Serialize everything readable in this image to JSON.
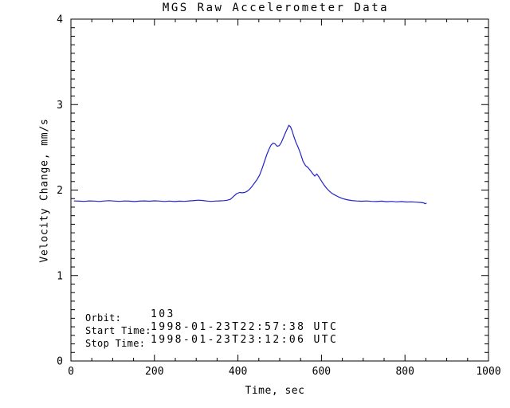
{
  "window": {
    "background_color": "#ffffff"
  },
  "chart_data": {
    "type": "line",
    "title": "MGS Raw Accelerometer Data",
    "xlabel": "Time, sec",
    "ylabel": "Velocity Change, mm/s",
    "xlim": [
      0,
      1000
    ],
    "ylim": [
      0,
      4
    ],
    "x_major_ticks": [
      0,
      200,
      400,
      600,
      800,
      1000
    ],
    "x_tick_labels": [
      "0",
      "200",
      "400",
      "600",
      "800",
      "1000"
    ],
    "x_minor_step": 50,
    "y_major_ticks": [
      0,
      1,
      2,
      3,
      4
    ],
    "y_tick_labels": [
      "0",
      "1",
      "2",
      "3",
      "4"
    ],
    "y_minor_step": 0.1,
    "grid": false,
    "legend": "none",
    "axis_color": "#000000",
    "line_color": "#2222cc",
    "annotations": [
      {
        "label": "Orbit:",
        "value": "103"
      },
      {
        "label": "Start Time:",
        "value": "1998-01-23T22:57:38 UTC"
      },
      {
        "label": "Stop Time:",
        "value": "1998-01-23T23:12:06 UTC"
      }
    ],
    "series": [
      {
        "name": "velocity-change",
        "points": [
          [
            8,
            1.872
          ],
          [
            20,
            1.87
          ],
          [
            32,
            1.868
          ],
          [
            44,
            1.873
          ],
          [
            56,
            1.871
          ],
          [
            68,
            1.867
          ],
          [
            80,
            1.872
          ],
          [
            92,
            1.876
          ],
          [
            104,
            1.871
          ],
          [
            116,
            1.868
          ],
          [
            128,
            1.872
          ],
          [
            140,
            1.87
          ],
          [
            152,
            1.866
          ],
          [
            164,
            1.87
          ],
          [
            176,
            1.873
          ],
          [
            188,
            1.869
          ],
          [
            200,
            1.874
          ],
          [
            212,
            1.871
          ],
          [
            224,
            1.867
          ],
          [
            236,
            1.871
          ],
          [
            248,
            1.866
          ],
          [
            260,
            1.87
          ],
          [
            272,
            1.868
          ],
          [
            284,
            1.873
          ],
          [
            296,
            1.878
          ],
          [
            306,
            1.882
          ],
          [
            316,
            1.878
          ],
          [
            326,
            1.871
          ],
          [
            336,
            1.868
          ],
          [
            346,
            1.871
          ],
          [
            356,
            1.873
          ],
          [
            366,
            1.876
          ],
          [
            374,
            1.881
          ],
          [
            382,
            1.892
          ],
          [
            390,
            1.928
          ],
          [
            397,
            1.958
          ],
          [
            404,
            1.972
          ],
          [
            410,
            1.968
          ],
          [
            416,
            1.972
          ],
          [
            422,
            1.985
          ],
          [
            428,
            2.01
          ],
          [
            434,
            2.045
          ],
          [
            440,
            2.085
          ],
          [
            446,
            2.125
          ],
          [
            452,
            2.175
          ],
          [
            458,
            2.255
          ],
          [
            464,
            2.34
          ],
          [
            469,
            2.415
          ],
          [
            474,
            2.475
          ],
          [
            479,
            2.525
          ],
          [
            484,
            2.548
          ],
          [
            489,
            2.54
          ],
          [
            494,
            2.512
          ],
          [
            499,
            2.52
          ],
          [
            504,
            2.558
          ],
          [
            509,
            2.615
          ],
          [
            514,
            2.672
          ],
          [
            518,
            2.715
          ],
          [
            522,
            2.758
          ],
          [
            526,
            2.74
          ],
          [
            530,
            2.69
          ],
          [
            534,
            2.625
          ],
          [
            539,
            2.558
          ],
          [
            544,
            2.502
          ],
          [
            550,
            2.425
          ],
          [
            556,
            2.335
          ],
          [
            562,
            2.285
          ],
          [
            568,
            2.262
          ],
          [
            574,
            2.225
          ],
          [
            579,
            2.192
          ],
          [
            584,
            2.163
          ],
          [
            589,
            2.188
          ],
          [
            594,
            2.152
          ],
          [
            600,
            2.105
          ],
          [
            606,
            2.062
          ],
          [
            612,
            2.022
          ],
          [
            618,
            1.992
          ],
          [
            625,
            1.962
          ],
          [
            632,
            1.942
          ],
          [
            640,
            1.922
          ],
          [
            650,
            1.901
          ],
          [
            660,
            1.888
          ],
          [
            672,
            1.878
          ],
          [
            684,
            1.872
          ],
          [
            696,
            1.869
          ],
          [
            708,
            1.872
          ],
          [
            720,
            1.868
          ],
          [
            732,
            1.866
          ],
          [
            744,
            1.87
          ],
          [
            756,
            1.864
          ],
          [
            768,
            1.868
          ],
          [
            780,
            1.862
          ],
          [
            792,
            1.866
          ],
          [
            804,
            1.86
          ],
          [
            816,
            1.862
          ],
          [
            828,
            1.858
          ],
          [
            838,
            1.855
          ],
          [
            845,
            1.85
          ],
          [
            848,
            1.84
          ],
          [
            851,
            1.845
          ]
        ]
      }
    ]
  }
}
